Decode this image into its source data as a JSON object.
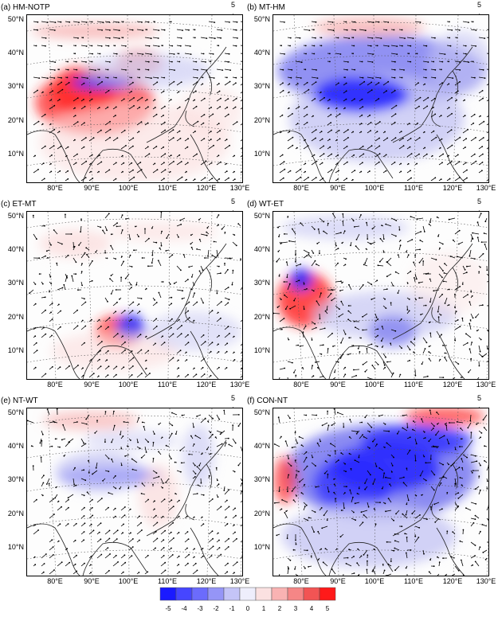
{
  "panels": [
    {
      "label": "(a) HM-NOTP",
      "ref": "5",
      "mode": "a"
    },
    {
      "label": "(b) MT-HM",
      "ref": "5",
      "mode": "b"
    },
    {
      "label": "(c) ET-MT",
      "ref": "5",
      "mode": "c"
    },
    {
      "label": "(d) WT-ET",
      "ref": "5",
      "mode": "d"
    },
    {
      "label": "(e) NT-WT",
      "ref": "5",
      "mode": "e"
    },
    {
      "label": "(f) CON-NT",
      "ref": "5",
      "mode": "f"
    }
  ],
  "lat_labels": [
    "50°N",
    "40°N",
    "30°N",
    "20°N",
    "10°N"
  ],
  "lon_labels": [
    "80°E",
    "90°E",
    "100°E",
    "110°E",
    "120°E",
    "130°E"
  ],
  "colorbar": {
    "ticks": [
      "-5",
      "-4",
      "-3",
      "-2",
      "-1",
      "0",
      "1",
      "2",
      "3",
      "4",
      "5"
    ],
    "colors": [
      "#1a1aff",
      "#4646ff",
      "#6b6bfc",
      "#9595f7",
      "#c4c4f7",
      "#eeeefc",
      "#fbe1e1",
      "#f9b3b3",
      "#f58686",
      "#f25454",
      "#ff1a1a"
    ]
  }
}
